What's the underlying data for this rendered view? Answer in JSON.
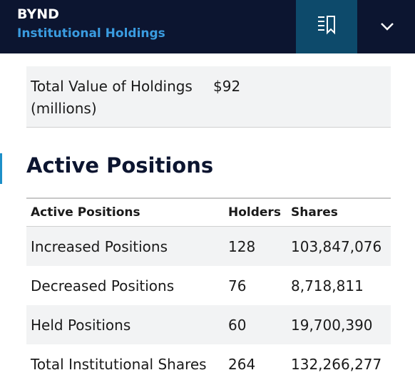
{
  "header": {
    "ticker": "BYND",
    "subtitle": "Institutional Holdings"
  },
  "summary": {
    "rows": [
      [
        "Total Value of Holdings (millions)",
        "$92"
      ]
    ]
  },
  "section": {
    "title": "Active Positions"
  },
  "table": {
    "columns": [
      "Active Positions",
      "Holders",
      "Shares"
    ],
    "rows": [
      [
        "Increased Positions",
        "128",
        "103,847,076"
      ],
      [
        "Decreased Positions",
        "76",
        "8,718,811"
      ],
      [
        "Held Positions",
        "60",
        "19,700,390"
      ],
      [
        "Total Institutional Shares",
        "264",
        "132,266,277"
      ]
    ]
  }
}
